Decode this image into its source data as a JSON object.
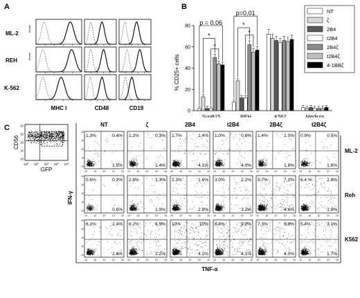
{
  "panel_a": {
    "letter": "A",
    "rows": [
      "ML-2",
      "REH",
      "K-562"
    ],
    "cols": [
      "MHC I",
      "CD48",
      "CD19"
    ],
    "ylabel_top": "Events",
    "ylabel_mid": "Events"
  },
  "panel_b": {
    "letter": "B",
    "ylabel": "% CD25+ cells",
    "yticks": [
      "0",
      "20",
      "40",
      "60",
      "80"
    ],
    "p1": "p = 0.06",
    "p2": "p=0.01",
    "star": "*",
    "legend": [
      {
        "name": "NT",
        "color": "#ffffff"
      },
      {
        "name": "ζ",
        "color": "#d9d9d9"
      },
      {
        "name": "2B4",
        "color": "#595959"
      },
      {
        "name": "t2B4",
        "color": "#ffffff"
      },
      {
        "name": "2B4ζ",
        "color": "#8c8c8c"
      },
      {
        "name": "t2B4ζ",
        "color": "#bfbfbf"
      },
      {
        "name": "4-1BBζ",
        "color": "#000000"
      }
    ]
  },
  "chart_data": {
    "type": "bar",
    "categories": [
      "SupB15",
      "REH",
      "K562",
      "Medium"
    ],
    "ylabel": "% CD25+ cells",
    "ylim": [
      0,
      80
    ],
    "series": [
      {
        "name": "NT",
        "values": [
          2,
          8,
          72,
          3
        ]
      },
      {
        "name": "ζ",
        "values": [
          13,
          28,
          68,
          2
        ]
      },
      {
        "name": "2B4",
        "values": [
          2,
          12,
          66,
          3
        ]
      },
      {
        "name": "t2B4",
        "values": [
          2,
          12,
          64,
          2
        ]
      },
      {
        "name": "2B4ζ",
        "values": [
          50,
          62,
          66,
          2
        ]
      },
      {
        "name": "t2B4ζ",
        "values": [
          44,
          55,
          65,
          2
        ]
      },
      {
        "name": "4-1BBζ",
        "values": [
          43,
          57,
          67,
          3
        ]
      }
    ]
  },
  "panel_c": {
    "letter": "C",
    "gate_ylabel": "CD56",
    "gate_xlabel": "GFP",
    "cols": [
      "NT",
      "ζ",
      "2B4",
      "t2B4",
      "2B4ζ",
      "t2B4ζ"
    ],
    "rows": [
      "ML-2",
      "Reh",
      "K562"
    ],
    "ylabel": "IFN-γ",
    "xlabel": "TNF-α",
    "axis_tick": "10",
    "quadrants": [
      [
        {
          "ul": "1.3%",
          "ur": "0.4%",
          "lr": "1.5%"
        },
        {
          "ul": "1.2%",
          "ur": "0.3%",
          "lr": "1.4%"
        },
        {
          "ul": "1.7%",
          "ur": "1.4%",
          "lr": "4.1%"
        },
        {
          "ul": "1.0%",
          "ur": "0.6%",
          "lr": "4.0%"
        },
        {
          "ul": "1.4%",
          "ur": "1.0%",
          "lr": "1.8%"
        },
        {
          "ul": "0.9%",
          "ur": "0.5%",
          "lr": "1.6%"
        }
      ],
      [
        {
          "ul": "0.6%",
          "ur": "0.2%",
          "lr": "0.6%"
        },
        {
          "ul": "2.8%",
          "ur": "1.3%",
          "lr": "1.9%"
        },
        {
          "ul": "2.3%",
          "ur": "1.6%",
          "lr": "2.8%"
        },
        {
          "ul": "3.0%",
          "ur": "2.2%",
          "lr": "3.2%"
        },
        {
          "ul": "9.7%",
          "ur": "7.1%",
          "lr": "4.6%"
        },
        {
          "ul": "6.4 %",
          "ur": "2.8%",
          "lr": "1.8%"
        }
      ],
      [
        {
          "ul": "6.1%",
          "ur": "2.4%",
          "lr": "2.6%"
        },
        {
          "ul": "8.2%",
          "ur": "6.5%",
          "lr": "2.2%"
        },
        {
          "ul": "10%",
          "ur": "10%",
          "lr": "4.2%"
        },
        {
          "ul": "8.8%",
          "ur": "9.2%",
          "lr": "4.1%"
        },
        {
          "ul": "7.3%",
          "ur": "6.8%",
          "lr": "4.0%"
        },
        {
          "ul": "5.4%",
          "ur": "3.1%",
          "lr": "1.7%"
        }
      ]
    ]
  }
}
